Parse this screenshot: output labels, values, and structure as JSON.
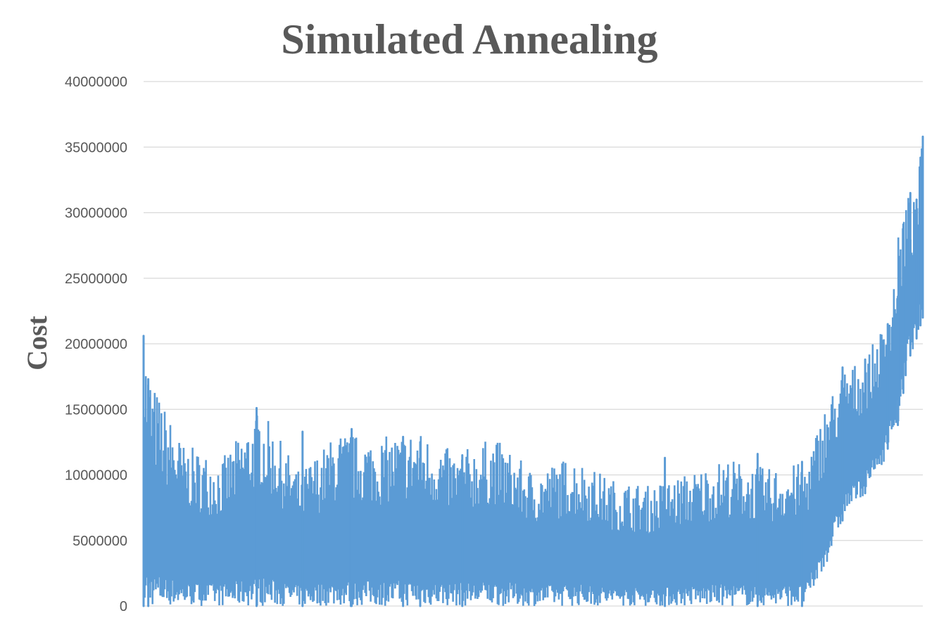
{
  "chart_data": {
    "type": "line",
    "title": "Simulated Annealing",
    "xlabel": "",
    "ylabel": "Cost",
    "ylim": [
      0,
      40000000
    ],
    "yticks": [
      "0",
      "5000000",
      "10000000",
      "15000000",
      "20000000",
      "25000000",
      "30000000",
      "35000000",
      "40000000"
    ],
    "grid": true,
    "legend": "none",
    "series": [
      {
        "color": "#5b9bd5",
        "envelope": {
          "x_fraction": [
            0.0,
            0.01,
            0.05,
            0.1,
            0.15,
            0.2,
            0.25,
            0.3,
            0.35,
            0.4,
            0.45,
            0.5,
            0.55,
            0.6,
            0.65,
            0.7,
            0.75,
            0.8,
            0.85,
            0.875,
            0.9,
            0.925,
            0.95,
            0.96,
            0.97,
            0.98,
            0.99,
            1.0
          ],
          "max": [
            20600000,
            17300000,
            12400000,
            11200000,
            15100000,
            10300000,
            13300000,
            12800000,
            13500000,
            11700000,
            12900000,
            10300000,
            11500000,
            9700000,
            9200000,
            10200000,
            11300000,
            10500000,
            11000000,
            15400000,
            18200000,
            18800000,
            21500000,
            23600000,
            29000000,
            31500000,
            30800000,
            35800000
          ],
          "min": [
            0,
            0,
            0,
            0,
            0,
            0,
            0,
            0,
            0,
            0,
            0,
            0,
            0,
            0,
            0,
            0,
            0,
            0,
            0,
            3000000,
            7000000,
            8500000,
            11000000,
            13000000,
            14000000,
            18500000,
            20000000,
            22000000
          ]
        },
        "spikes": [
          {
            "x_fraction": 0.0,
            "value": 20600000
          },
          {
            "x_fraction": 0.006,
            "value": 17300000
          },
          {
            "x_fraction": 0.145,
            "value": 15100000
          },
          {
            "x_fraction": 0.204,
            "value": 13300000
          },
          {
            "x_fraction": 0.266,
            "value": 12800000
          },
          {
            "x_fraction": 0.267,
            "value": 13500000
          },
          {
            "x_fraction": 0.333,
            "value": 12900000
          },
          {
            "x_fraction": 0.355,
            "value": 12500000
          },
          {
            "x_fraction": 0.409,
            "value": 11500000
          },
          {
            "x_fraction": 0.669,
            "value": 11300000
          },
          {
            "x_fraction": 0.788,
            "value": 11600000
          },
          {
            "x_fraction": 0.845,
            "value": 11000000
          },
          {
            "x_fraction": 0.897,
            "value": 18200000
          },
          {
            "x_fraction": 0.926,
            "value": 18800000
          },
          {
            "x_fraction": 0.955,
            "value": 21500000
          },
          {
            "x_fraction": 0.968,
            "value": 23600000
          },
          {
            "x_fraction": 0.975,
            "value": 29100000
          },
          {
            "x_fraction": 0.978,
            "value": 24500000
          },
          {
            "x_fraction": 0.984,
            "value": 31500000
          },
          {
            "x_fraction": 0.992,
            "value": 31000000
          },
          {
            "x_fraction": 0.997,
            "value": 34200000
          },
          {
            "x_fraction": 1.0,
            "value": 35800000
          }
        ]
      }
    ]
  }
}
